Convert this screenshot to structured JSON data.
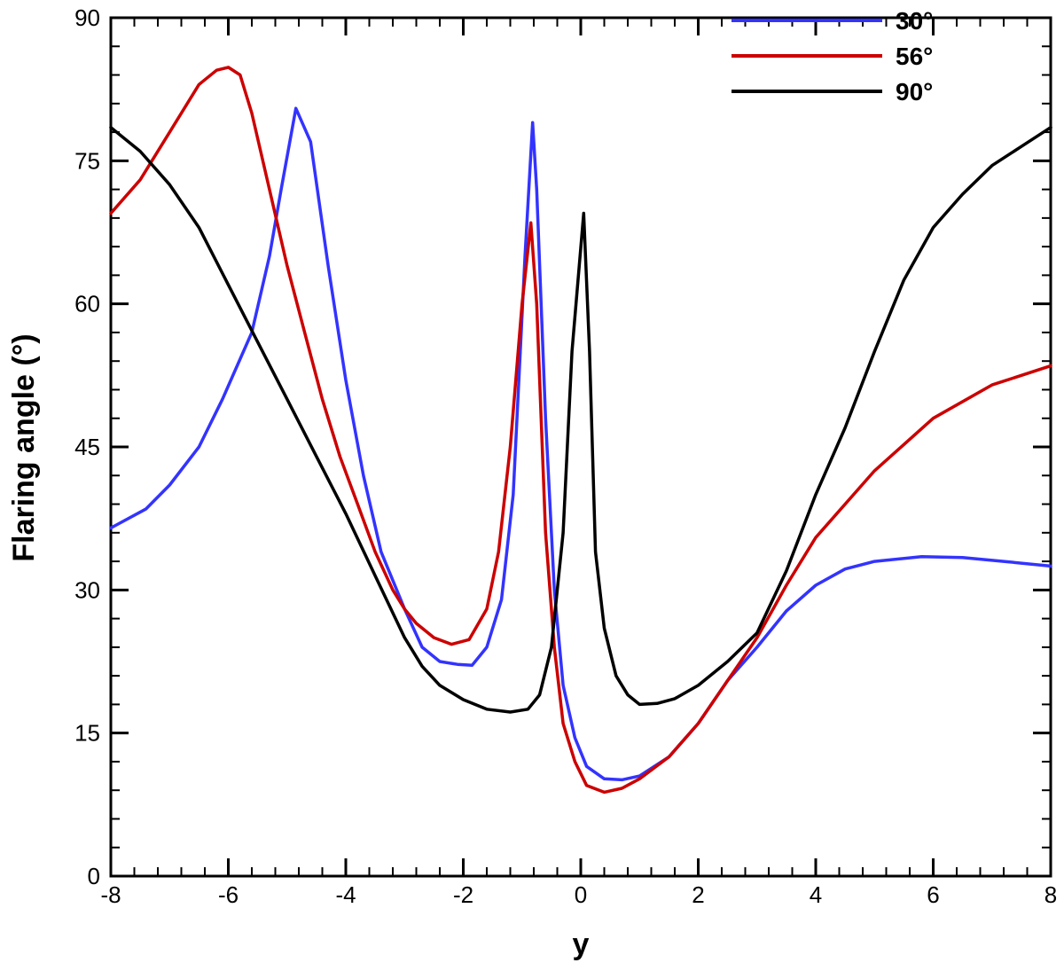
{
  "chart_data": {
    "type": "line",
    "title": "",
    "xlabel": "y",
    "ylabel": "Flaring angle (°)",
    "xlim": [
      -8,
      8
    ],
    "ylim": [
      0,
      90
    ],
    "x_ticks": [
      -8,
      -6,
      -4,
      -2,
      0,
      2,
      4,
      6,
      8
    ],
    "y_ticks": [
      0,
      15,
      30,
      45,
      60,
      75,
      90
    ],
    "grid": false,
    "legend_position": "top-right",
    "series": [
      {
        "name": "30°",
        "color": "#3333ff",
        "x": [
          -8,
          -7.4,
          -7,
          -6.5,
          -6.1,
          -5.6,
          -5.3,
          -5.1,
          -4.85,
          -4.6,
          -4.3,
          -4.0,
          -3.7,
          -3.4,
          -3.0,
          -2.7,
          -2.4,
          -2.1,
          -1.85,
          -1.6,
          -1.35,
          -1.15,
          -0.95,
          -0.82,
          -0.75,
          -0.6,
          -0.45,
          -0.3,
          -0.1,
          0.1,
          0.4,
          0.7,
          1.0,
          1.5,
          2.0,
          2.5,
          3.0,
          3.5,
          4.0,
          4.5,
          5.0,
          5.8,
          6.5,
          7.2,
          8.0
        ],
        "y": [
          36.5,
          38.5,
          41,
          45,
          50,
          57,
          65,
          72,
          80.5,
          77,
          64,
          52,
          42,
          34,
          28,
          24,
          22.5,
          22.2,
          22.1,
          24,
          29,
          40,
          65,
          79,
          72,
          48,
          30,
          20,
          14.5,
          11.5,
          10.2,
          10.1,
          10.5,
          12.5,
          16,
          20.5,
          24,
          27.8,
          30.5,
          32.2,
          33,
          33.5,
          33.4,
          33,
          32.5
        ]
      },
      {
        "name": "56°",
        "color": "#cc0000",
        "x": [
          -8,
          -7.5,
          -7,
          -6.5,
          -6.2,
          -6.0,
          -5.8,
          -5.6,
          -5.3,
          -5.0,
          -4.7,
          -4.4,
          -4.1,
          -3.8,
          -3.5,
          -3.2,
          -3.0,
          -2.8,
          -2.5,
          -2.2,
          -1.9,
          -1.6,
          -1.4,
          -1.2,
          -1.0,
          -0.85,
          -0.75,
          -0.6,
          -0.45,
          -0.3,
          -0.1,
          0.1,
          0.4,
          0.7,
          1.0,
          1.5,
          2.0,
          2.5,
          3.0,
          3.5,
          4.0,
          5.0,
          6.0,
          7.0,
          8.0
        ],
        "y": [
          69.5,
          73,
          78,
          83,
          84.5,
          84.8,
          84,
          80,
          72,
          64,
          57,
          50,
          44,
          39,
          34,
          30,
          28,
          26.5,
          25,
          24.3,
          24.8,
          28,
          34,
          45,
          60,
          68.5,
          60,
          36,
          24,
          16,
          12,
          9.5,
          8.8,
          9.2,
          10.2,
          12.5,
          16,
          20.5,
          25,
          30.5,
          35.5,
          42.5,
          48,
          51.5,
          53.5
        ]
      },
      {
        "name": "90°",
        "color": "#000000",
        "x": [
          -8,
          -7.5,
          -7,
          -6.5,
          -6.0,
          -5.5,
          -5.0,
          -4.5,
          -4.0,
          -3.5,
          -3.0,
          -2.7,
          -2.4,
          -2.0,
          -1.6,
          -1.2,
          -0.9,
          -0.7,
          -0.5,
          -0.3,
          -0.15,
          0.05,
          0.15,
          0.25,
          0.4,
          0.6,
          0.8,
          1.0,
          1.3,
          1.6,
          2.0,
          2.5,
          3.0,
          3.5,
          4.0,
          4.5,
          5.0,
          5.5,
          6.0,
          6.5,
          7.0,
          7.5,
          8.0
        ],
        "y": [
          78.5,
          76,
          72.5,
          68,
          62,
          56,
          50,
          44,
          38,
          31.5,
          25,
          22,
          20,
          18.5,
          17.5,
          17.2,
          17.5,
          19,
          24,
          36,
          55,
          69.5,
          55,
          34,
          26,
          21,
          19,
          18,
          18.1,
          18.6,
          20,
          22.5,
          25.5,
          32,
          40,
          47,
          55,
          62.5,
          68,
          71.5,
          74.5,
          76.5,
          78.5
        ]
      }
    ]
  }
}
